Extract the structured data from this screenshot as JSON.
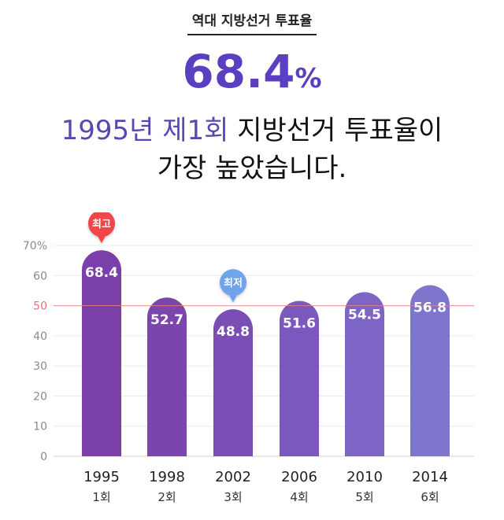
{
  "header": {
    "title": "역대 지방선거 투표율"
  },
  "highlight": {
    "value": "68.4",
    "unit": "%"
  },
  "summary": {
    "part1": "1995년 제1회",
    "part2": " 지방선거 투표율이",
    "line2": "가장 높았습니다."
  },
  "chart_data": {
    "type": "bar",
    "categories": [
      "1995",
      "1998",
      "2002",
      "2006",
      "2010",
      "2014"
    ],
    "sub_labels": [
      "1회",
      "2회",
      "3회",
      "4회",
      "5회",
      "6회"
    ],
    "values": [
      68.4,
      52.7,
      48.8,
      51.6,
      54.5,
      56.8
    ],
    "value_labels": [
      "68.4",
      "52.7",
      "48.8",
      "51.6",
      "54.5",
      "56.8"
    ],
    "ylim": [
      0,
      70
    ],
    "y_ticks": [
      "0",
      "10",
      "20",
      "30",
      "40",
      "50",
      "60",
      "70%"
    ],
    "reference_line": {
      "value": 50,
      "color": "#f08080"
    },
    "grid": true,
    "callouts": [
      {
        "label": "최고",
        "index": 0,
        "color": "#f04548"
      },
      {
        "label": "최저",
        "index": 2,
        "color": "#6fa3ec"
      }
    ],
    "bar_colors": [
      "#7a3fa8",
      "#7b45ad",
      "#7a4eb5",
      "#7b58bd",
      "#7c65c4",
      "#7e75cd"
    ]
  }
}
